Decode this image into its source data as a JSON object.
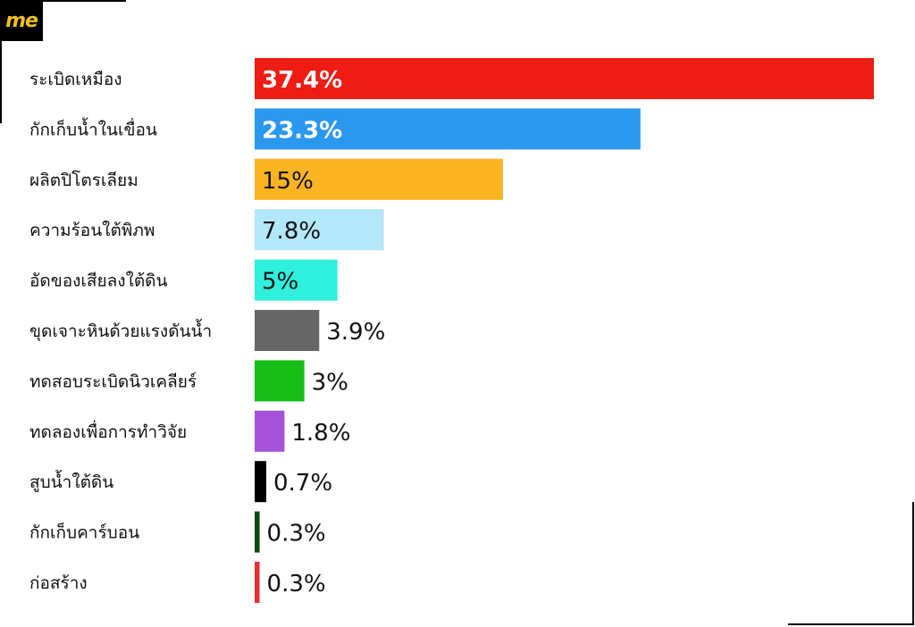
{
  "logo": {
    "text": "me",
    "text_color": "#f2c21a",
    "background": "#000000"
  },
  "chart_data": {
    "type": "bar",
    "orientation": "horizontal",
    "title": "",
    "xlabel": "",
    "ylabel": "",
    "xlim": [
      0,
      37.4
    ],
    "grid": false,
    "legend": "none",
    "categories": [
      "ระเบิดเหมือง",
      "กักเก็บน้ำในเขื่อน",
      "ผลิตปิโตรเลียม",
      "ความร้อนใต้พิภพ",
      "อัดของเสียลงใต้ดิน",
      "ขุดเจาะหินด้วยแรงดันน้ำ",
      "ทดสอบระเบิดนิวเคลียร์",
      "ทดลองเพื่อการทำวิจัย",
      "สูบน้ำใต้ดิน",
      "กักเก็บคาร์บอน",
      "ก่อสร้าง"
    ],
    "values": [
      37.4,
      23.3,
      15,
      7.8,
      5,
      3.9,
      3,
      1.8,
      0.7,
      0.3,
      0.3
    ],
    "value_labels": [
      "37.4%",
      "23.3%",
      "15%",
      "7.8%",
      "5%",
      "3.9%",
      "3%",
      "1.8%",
      "0.7%",
      "0.3%",
      "0.3%"
    ],
    "colors": [
      "#ee1c14",
      "#2b98f0",
      "#fbb421",
      "#b3e7fa",
      "#2ef0dc",
      "#666666",
      "#15bd15",
      "#a552d8",
      "#000000",
      "#0a4a10",
      "#e53030"
    ],
    "label_position": [
      "inside",
      "inside",
      "inside",
      "inside",
      "inside",
      "outside",
      "outside",
      "outside",
      "outside",
      "outside",
      "outside"
    ],
    "label_colors": [
      "#ffffff",
      "#ffffff",
      "#111111",
      "#111111",
      "#111111",
      "#111111",
      "#111111",
      "#111111",
      "#111111",
      "#111111",
      "#111111"
    ]
  }
}
